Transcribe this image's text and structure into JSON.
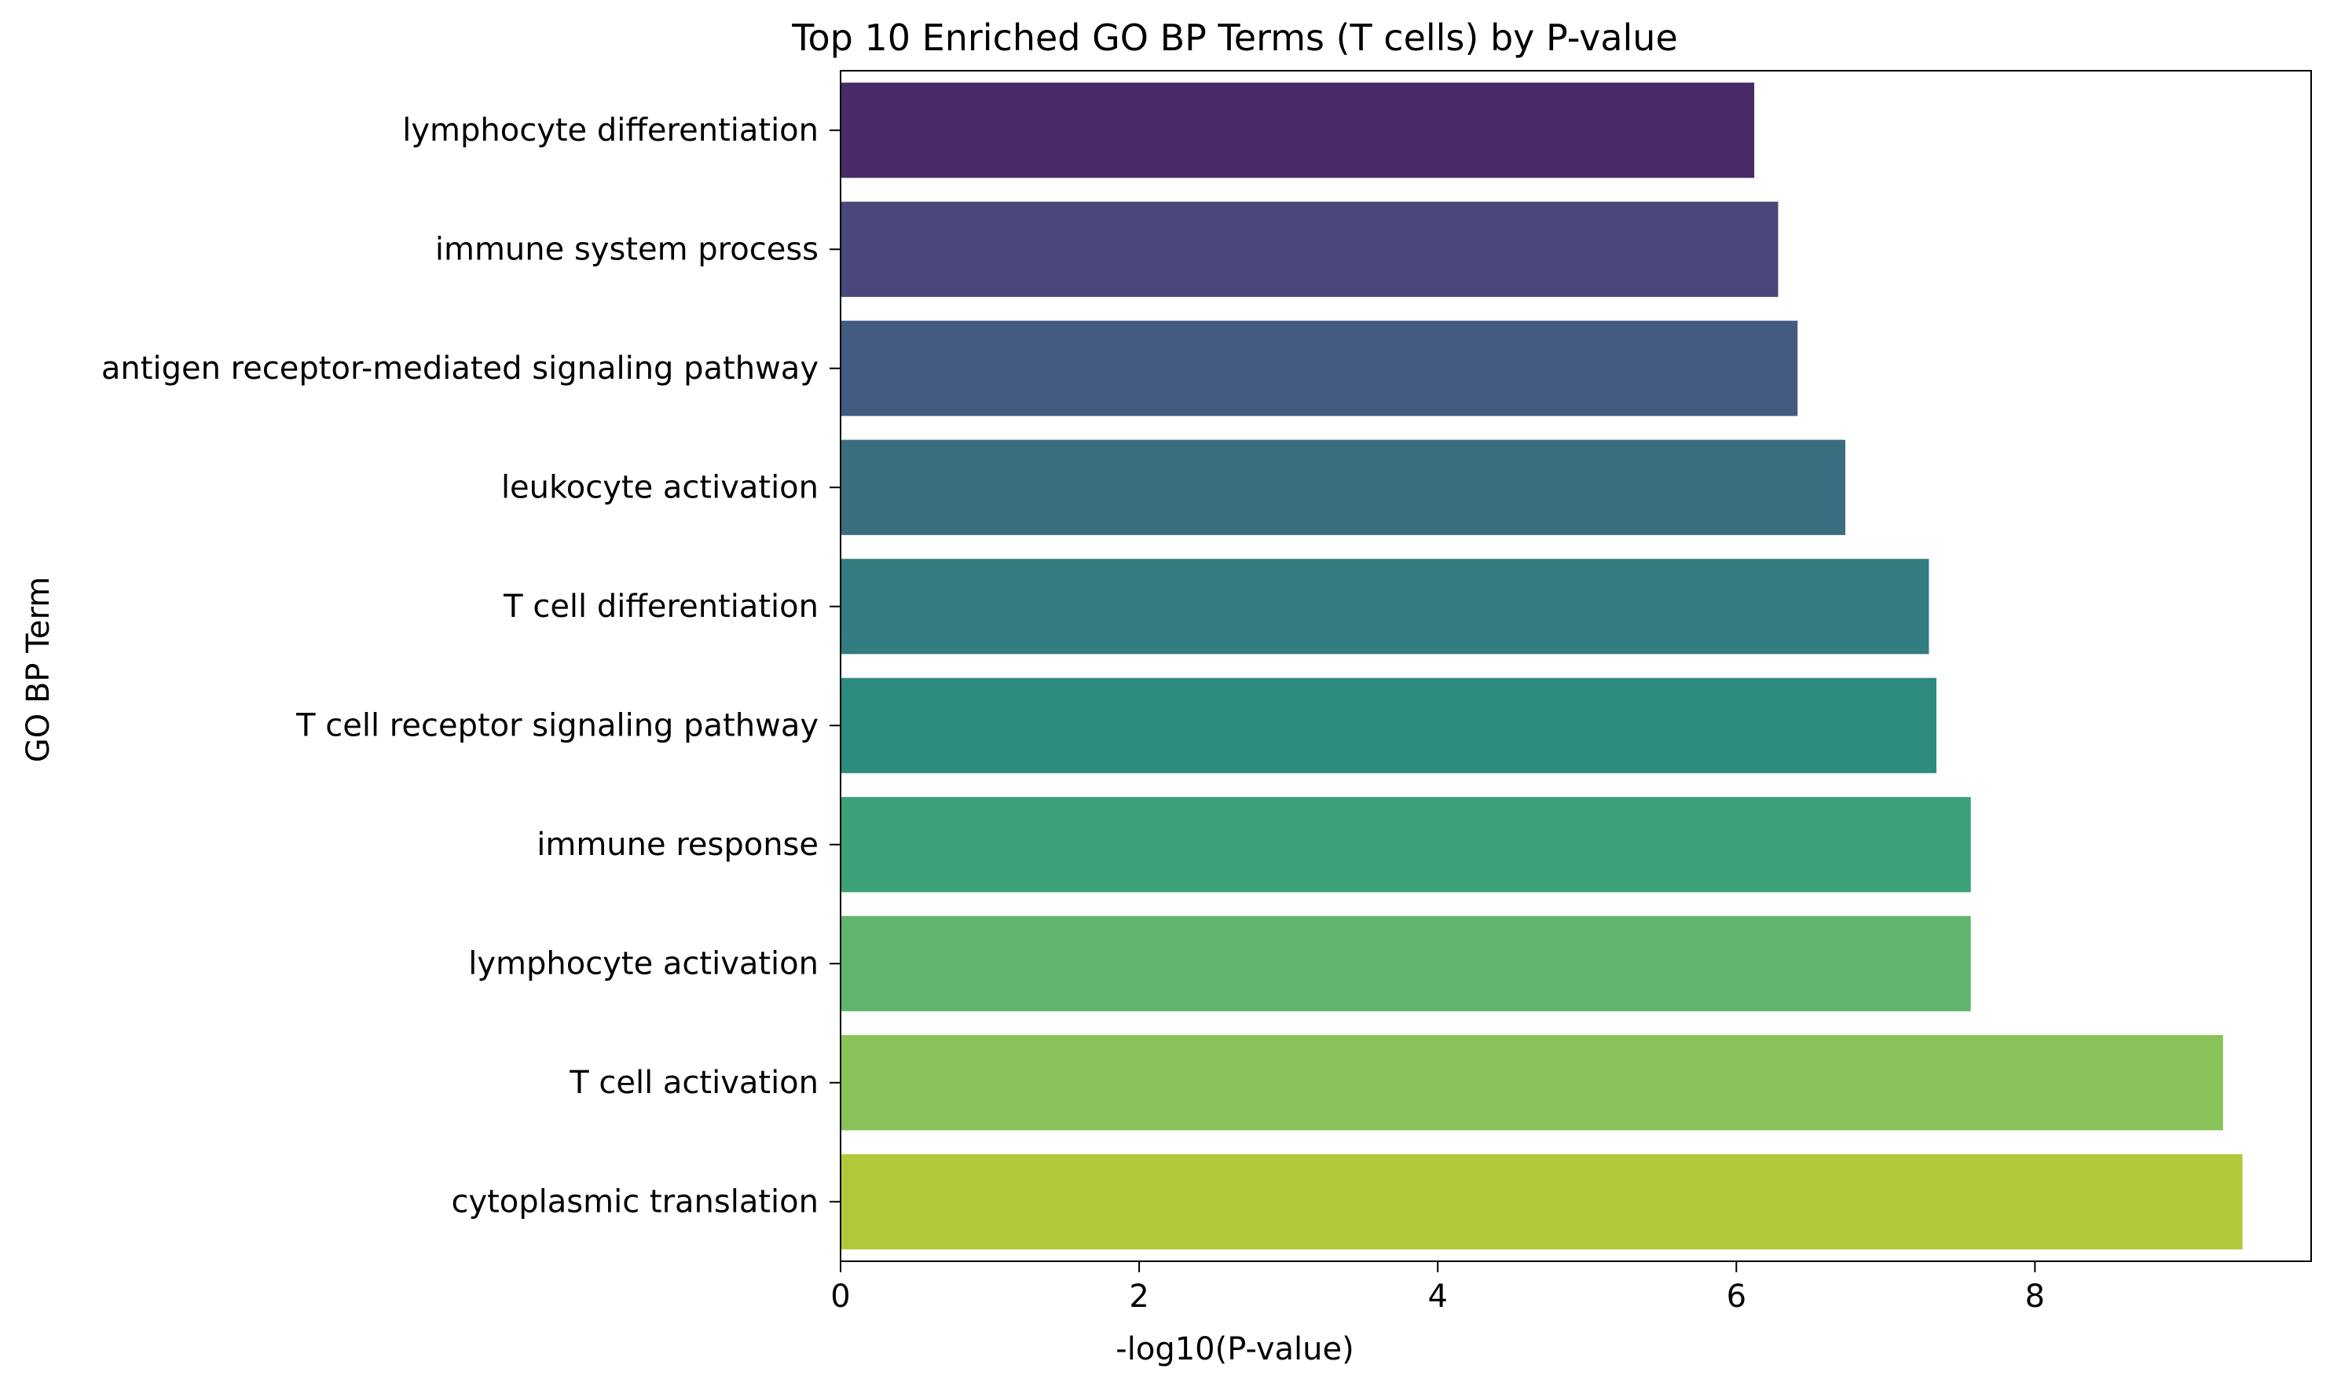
{
  "chart_data": {
    "type": "bar",
    "orientation": "horizontal",
    "title": "Top 10 Enriched GO BP Terms (T cells) by P-value",
    "xlabel": "-log10(P-value)",
    "ylabel": "GO BP Term",
    "xlim": [
      0,
      9.85
    ],
    "x_ticks": [
      0,
      2,
      4,
      6,
      8
    ],
    "grid": false,
    "categories": [
      "lymphocyte differentiation",
      "immune system process",
      "antigen receptor-mediated signaling pathway",
      "leukocyte activation",
      "T cell differentiation",
      "T cell receptor signaling pathway",
      "immune response",
      "lymphocyte activation",
      "T cell activation",
      "cytoplasmic translation"
    ],
    "values": [
      6.12,
      6.28,
      6.41,
      6.73,
      7.29,
      7.34,
      7.57,
      7.57,
      9.26,
      9.39
    ],
    "colors": [
      "#482A67",
      "#4A477C",
      "#435B80",
      "#3A6D80",
      "#317D80",
      "#2E8C7F",
      "#3CA078",
      "#60B56C",
      "#8AC25A",
      "#B1C83A"
    ]
  }
}
